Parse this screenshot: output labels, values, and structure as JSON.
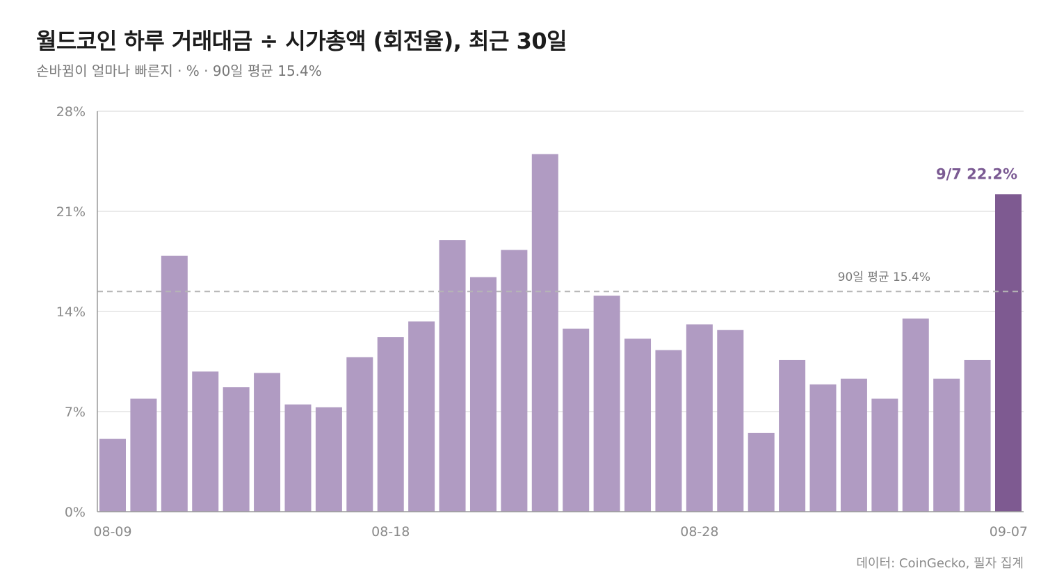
{
  "header": {
    "title": "월드코인 하루 거래대금 ÷ 시가총액 (회전율), 최근 30일",
    "subtitle": "손바뀜이 얼마나 빠른지 · % · 90일 평균 15.4%"
  },
  "footer": {
    "source": "데이터: CoinGecko, 필자 집계"
  },
  "colors": {
    "bar": "#b09bc2",
    "highlight_bar": "#7e5a91",
    "highlight_text": "#7b5a93",
    "grid": "#e3e3e3",
    "axis": "#999999",
    "average_line": "#b5b5b5"
  },
  "chart_data": {
    "type": "bar",
    "x_tick_labels": [
      "08-09",
      "08-18",
      "08-28",
      "09-07"
    ],
    "x_tick_positions": [
      0,
      9,
      19,
      29
    ],
    "y_tick_labels": [
      "0%",
      "7%",
      "14%",
      "21%",
      "28%"
    ],
    "ylim": [
      0,
      28
    ],
    "grid": true,
    "values": [
      5.1,
      7.9,
      17.9,
      9.8,
      8.7,
      9.7,
      7.5,
      7.3,
      10.8,
      12.2,
      13.3,
      19.0,
      16.4,
      18.3,
      25.0,
      12.8,
      15.1,
      12.1,
      11.3,
      13.1,
      12.7,
      5.5,
      10.6,
      8.9,
      9.3,
      7.9,
      13.5,
      9.3,
      10.6,
      22.2
    ],
    "highlight_index": 29,
    "average": {
      "value": 15.4,
      "label": "90일 평균 15.4%"
    },
    "highlight_label": "9/7  22.2%"
  }
}
